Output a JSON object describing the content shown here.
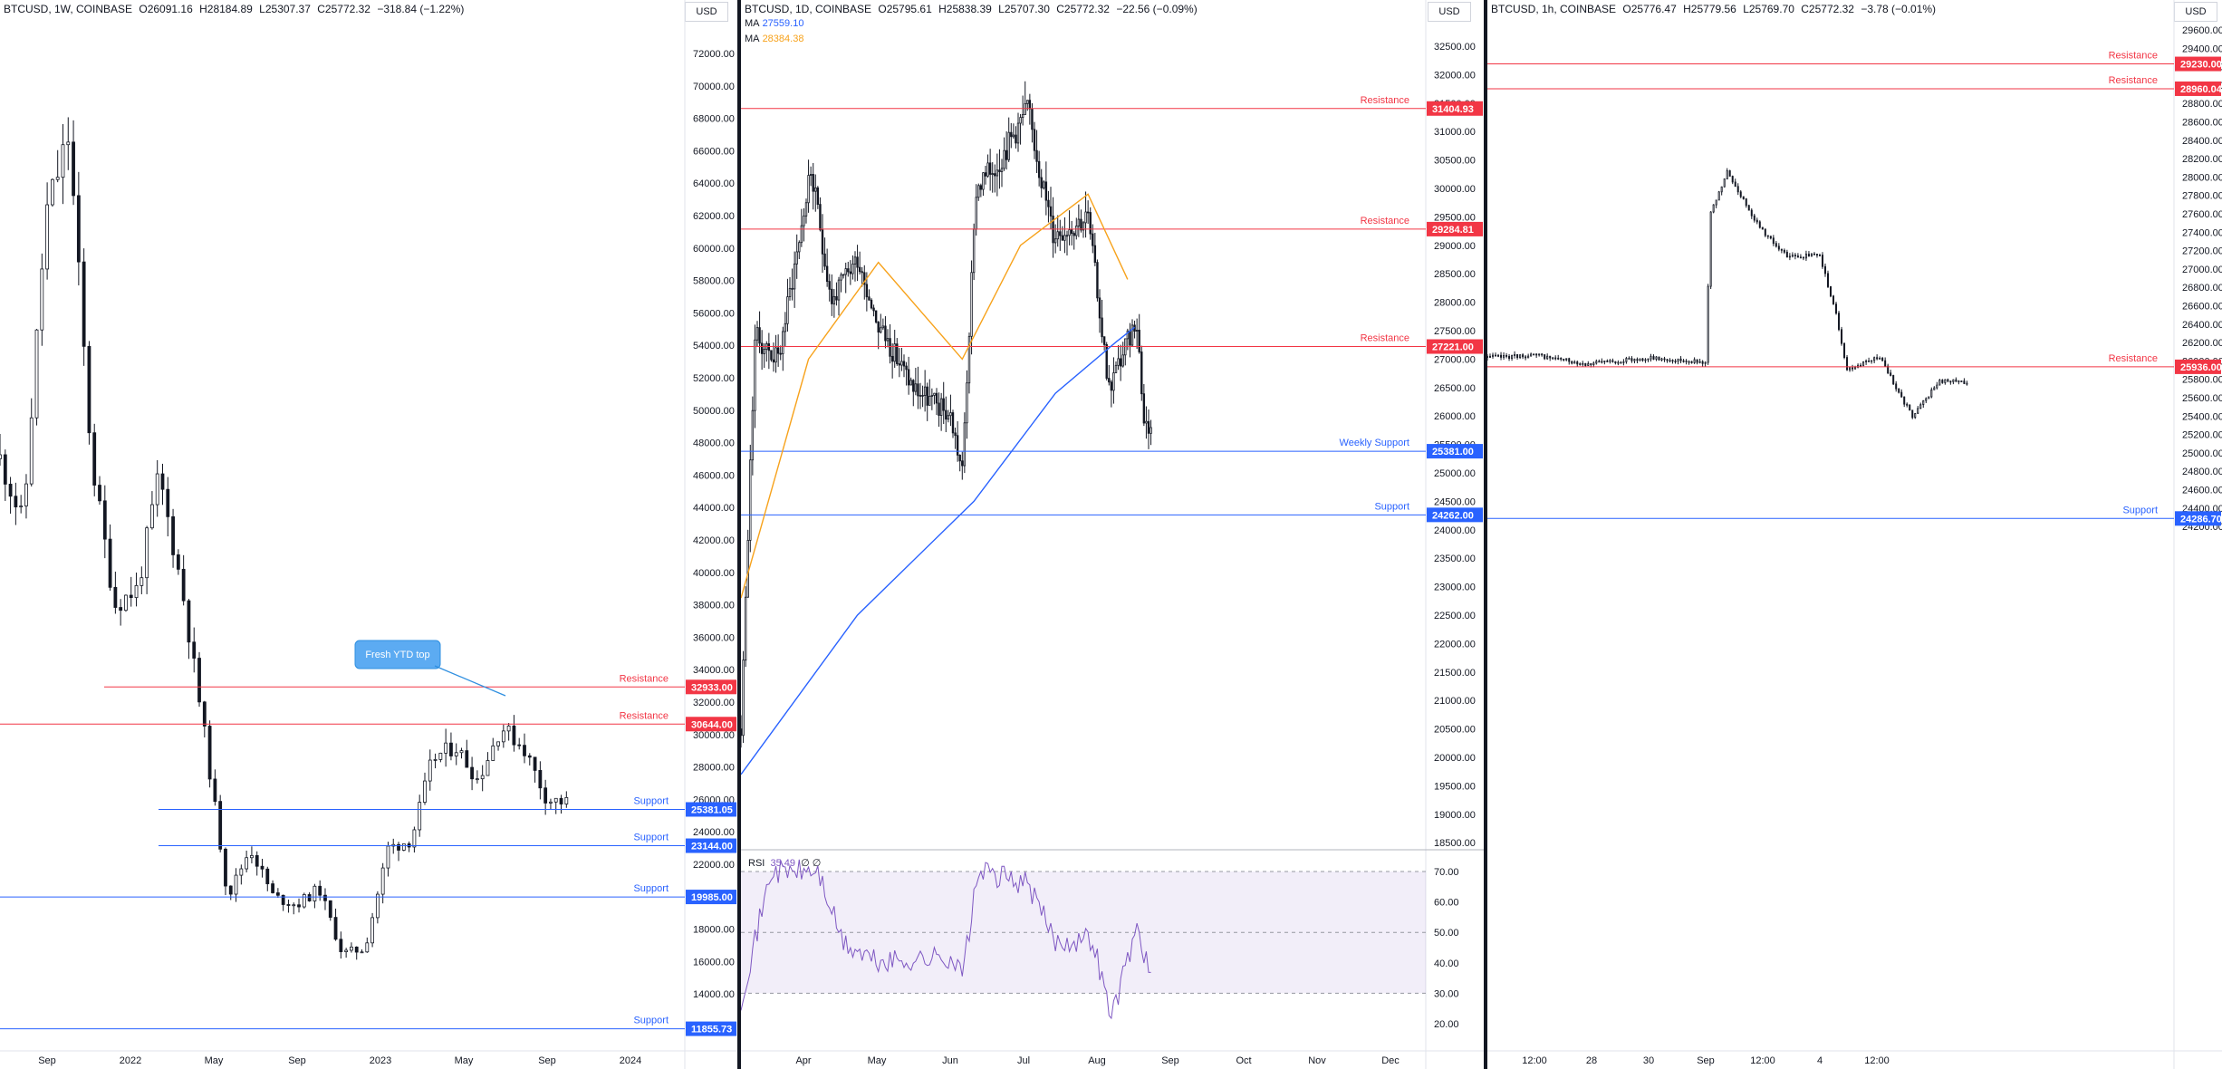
{
  "colors": {
    "resistance": "#f23645",
    "support": "#2962ff",
    "ma_fast": "#f7a21b",
    "ma_slow": "#2962ff",
    "rsi": "#7e57c2",
    "candle": "#131722",
    "callout": "#5cabf2"
  },
  "panes": [
    {
      "id": "weekly",
      "header": {
        "symbol": "BTCUSD, 1W, COINBASE",
        "o": "O26091.16",
        "h": "H28184.89",
        "l": "L25307.37",
        "c": "C25772.32",
        "chg": "−318.84 (−1.22%)"
      },
      "currency": "USD",
      "y_labels": [
        "72000.00",
        "70000.00",
        "68000.00",
        "66000.00",
        "64000.00",
        "62000.00",
        "60000.00",
        "58000.00",
        "56000.00",
        "54000.00",
        "52000.00",
        "50000.00",
        "48000.00",
        "46000.00",
        "44000.00",
        "42000.00",
        "40000.00",
        "38000.00",
        "36000.00",
        "34000.00",
        "32000.00",
        "30000.00",
        "28000.00",
        "26000.00",
        "24000.00",
        "22000.00",
        "20000.00",
        "18000.00",
        "16000.00",
        "14000.00",
        "12000.00"
      ],
      "x_labels": [
        "Sep",
        "2022",
        "May",
        "Sep",
        "2023",
        "May",
        "Sep",
        "2024"
      ],
      "levels": [
        {
          "type": "resistance",
          "label": "Resistance",
          "price": "32933.00"
        },
        {
          "type": "resistance",
          "label": "Resistance",
          "price": "30644.00"
        },
        {
          "type": "support",
          "label": "Support",
          "price": "25381.05"
        },
        {
          "type": "support",
          "label": "Support",
          "price": "23144.00"
        },
        {
          "type": "support",
          "label": "Support",
          "price": "19985.00"
        },
        {
          "type": "support",
          "label": "Support",
          "price": "11855.73"
        }
      ],
      "callout": "Fresh YTD top"
    },
    {
      "id": "daily",
      "header": {
        "symbol": "BTCUSD, 1D, COINBASE",
        "o": "O25795.61",
        "h": "H25838.39",
        "l": "L25707.30",
        "c": "C25772.32",
        "chg": "−22.56 (−0.09%)"
      },
      "currency": "USD",
      "ma": [
        {
          "label": "MA",
          "value": "27559.10",
          "color": "#2962ff"
        },
        {
          "label": "MA",
          "value": "28384.38",
          "color": "#f7a21b"
        }
      ],
      "y_labels": [
        "32500.00",
        "32000.00",
        "31500.00",
        "31000.00",
        "30500.00",
        "30000.00",
        "29500.00",
        "29000.00",
        "28500.00",
        "28000.00",
        "27500.00",
        "27000.00",
        "26500.00",
        "26000.00",
        "25500.00",
        "25000.00",
        "24500.00",
        "24000.00",
        "23500.00",
        "23000.00",
        "22500.00",
        "22000.00",
        "21500.00",
        "21000.00",
        "20500.00",
        "20000.00",
        "19500.00",
        "19000.00",
        "18500.00"
      ],
      "x_labels": [
        "Apr",
        "May",
        "Jun",
        "Jul",
        "Aug",
        "Sep",
        "Oct",
        "Nov",
        "Dec"
      ],
      "levels": [
        {
          "type": "resistance",
          "label": "Resistance",
          "price": "31404.93"
        },
        {
          "type": "resistance",
          "label": "Resistance",
          "price": "29284.81"
        },
        {
          "type": "resistance",
          "label": "Resistance",
          "price": "27221.00"
        },
        {
          "type": "support",
          "label": "Weekly Support",
          "price": "25381.00"
        },
        {
          "type": "support",
          "label": "Support",
          "price": "24262.00"
        }
      ],
      "rsi": {
        "label": "RSI",
        "value": "35.49",
        "extra1": "∅",
        "extra2": "∅",
        "y_labels": [
          "70.00",
          "60.00",
          "50.00",
          "40.00",
          "30.00",
          "20.00"
        ]
      }
    },
    {
      "id": "hourly",
      "header": {
        "symbol": "BTCUSD, 1h, COINBASE",
        "o": "O25776.47",
        "h": "H25779.56",
        "l": "L25769.70",
        "c": "C25772.32",
        "chg": "−3.78 (−0.01%)"
      },
      "currency": "USD",
      "y_labels": [
        "29600.00",
        "29400.00",
        "29200.00",
        "29000.00",
        "28800.00",
        "28600.00",
        "28400.00",
        "28200.00",
        "28000.00",
        "27800.00",
        "27600.00",
        "27400.00",
        "27200.00",
        "27000.00",
        "26800.00",
        "26600.00",
        "26400.00",
        "26200.00",
        "26000.00",
        "25800.00",
        "25600.00",
        "25400.00",
        "25200.00",
        "25000.00",
        "24800.00",
        "24600.00",
        "24400.00",
        "24200.00"
      ],
      "x_labels": [
        "12:00",
        "28",
        "30",
        "Sep",
        "12:00",
        "4",
        "12:00"
      ],
      "levels": [
        {
          "type": "resistance",
          "label": "Resistance",
          "price": "29230.00"
        },
        {
          "type": "resistance",
          "label": "Resistance",
          "price": "28960.04"
        },
        {
          "type": "resistance",
          "label": "Resistance",
          "price": "25936.00"
        },
        {
          "type": "support",
          "label": "Support",
          "price": "24286.70"
        }
      ]
    }
  ],
  "chart_data": [
    {
      "type": "candlestick",
      "timeframe": "1W",
      "x_range": [
        "2021-08",
        "2024-02"
      ],
      "ylim": [
        11000,
        73000
      ],
      "levels": [
        32933.0,
        30644.0,
        25381.05,
        23144.0,
        19985.0,
        11855.73
      ],
      "path": [
        [
          "2021-08",
          47000
        ],
        [
          "2021-09",
          43000
        ],
        [
          "2021-10",
          62000
        ],
        [
          "2021-11",
          67000
        ],
        [
          "2021-12",
          47000
        ],
        [
          "2022-01",
          38000
        ],
        [
          "2022-02",
          39000
        ],
        [
          "2022-03",
          46000
        ],
        [
          "2022-04",
          39000
        ],
        [
          "2022-05",
          30000
        ],
        [
          "2022-06",
          20000
        ],
        [
          "2022-07",
          23000
        ],
        [
          "2022-08",
          20000
        ],
        [
          "2022-09",
          19500
        ],
        [
          "2022-10",
          20500
        ],
        [
          "2022-11",
          16500
        ],
        [
          "2022-12",
          16800
        ],
        [
          "2023-01",
          23000
        ],
        [
          "2023-02",
          23500
        ],
        [
          "2023-03",
          28500
        ],
        [
          "2023-04",
          29300
        ],
        [
          "2023-05",
          27200
        ],
        [
          "2023-06",
          30500
        ],
        [
          "2023-07",
          29200
        ],
        [
          "2023-08",
          26000
        ],
        [
          "2023-09",
          25772
        ]
      ]
    },
    {
      "type": "candlestick",
      "timeframe": "1D",
      "x_range": [
        "2023-03-12",
        "2023-12-31"
      ],
      "ylim": [
        18300,
        32900
      ],
      "levels": [
        31404.93,
        29284.81,
        27221.0,
        25381.0,
        24262.0
      ],
      "path": [
        [
          "2023-03-12",
          20500
        ],
        [
          "2023-03-18",
          27400
        ],
        [
          "2023-03-28",
          27000
        ],
        [
          "2023-04-11",
          30300
        ],
        [
          "2023-04-20",
          28000
        ],
        [
          "2023-05-01",
          28800
        ],
        [
          "2023-05-10",
          27600
        ],
        [
          "2023-05-25",
          26500
        ],
        [
          "2023-06-10",
          26000
        ],
        [
          "2023-06-15",
          25000
        ],
        [
          "2023-06-21",
          30000
        ],
        [
          "2023-07-01",
          30500
        ],
        [
          "2023-07-13",
          31400
        ],
        [
          "2023-07-24",
          29200
        ],
        [
          "2023-08-08",
          29500
        ],
        [
          "2023-08-17",
          26500
        ],
        [
          "2023-08-29",
          27700
        ],
        [
          "2023-09-01",
          25900
        ],
        [
          "2023-09-04",
          25772
        ]
      ],
      "ma_fast_path": [
        [
          "2023-03-12",
          22800
        ],
        [
          "2023-04-10",
          27000
        ],
        [
          "2023-05-10",
          28700
        ],
        [
          "2023-06-15",
          27000
        ],
        [
          "2023-07-10",
          29000
        ],
        [
          "2023-08-08",
          29900
        ],
        [
          "2023-08-25",
          28400
        ]
      ],
      "ma_slow_path": [
        [
          "2023-03-12",
          19700
        ],
        [
          "2023-05-01",
          22500
        ],
        [
          "2023-06-20",
          24500
        ],
        [
          "2023-07-25",
          26400
        ],
        [
          "2023-08-20",
          27300
        ],
        [
          "2023-08-28",
          27559
        ]
      ],
      "rsi_path": [
        [
          "2023-03-12",
          28
        ],
        [
          "2023-03-25",
          70
        ],
        [
          "2023-04-14",
          70
        ],
        [
          "2023-04-25",
          46
        ],
        [
          "2023-05-10",
          40
        ],
        [
          "2023-06-10",
          42
        ],
        [
          "2023-06-15",
          36
        ],
        [
          "2023-06-22",
          70
        ],
        [
          "2023-07-13",
          66
        ],
        [
          "2023-07-25",
          47
        ],
        [
          "2023-08-10",
          48
        ],
        [
          "2023-08-18",
          22
        ],
        [
          "2023-08-29",
          52
        ],
        [
          "2023-09-04",
          35.49
        ]
      ],
      "rsi_ylim": [
        15,
        75
      ]
    },
    {
      "type": "candlestick",
      "timeframe": "1h",
      "x_range": [
        "2023-08-26 06:00",
        "2023-09-05 18:00"
      ],
      "ylim": [
        24150,
        29700
      ],
      "levels": [
        29230.0,
        28960.04,
        25936.0,
        24286.7
      ],
      "path": [
        [
          "2023-08-26 06:00",
          26040
        ],
        [
          "2023-08-27 00:00",
          26060
        ],
        [
          "2023-08-27 18:00",
          25970
        ],
        [
          "2023-08-28 18:00",
          26030
        ],
        [
          "2023-08-29 14:00",
          25990
        ],
        [
          "2023-08-29 16:00",
          27600
        ],
        [
          "2023-08-29 22:00",
          28050
        ],
        [
          "2023-08-30 10:00",
          27450
        ],
        [
          "2023-08-30 20:00",
          27130
        ],
        [
          "2023-08-31 08:00",
          27150
        ],
        [
          "2023-08-31 14:00",
          26500
        ],
        [
          "2023-08-31 18:00",
          25900
        ],
        [
          "2023-09-01 06:00",
          26050
        ],
        [
          "2023-09-01 14:00",
          25600
        ],
        [
          "2023-09-01 18:00",
          25400
        ],
        [
          "2023-09-02 04:00",
          25780
        ],
        [
          "2023-09-02 14:00",
          25772
        ]
      ]
    }
  ]
}
